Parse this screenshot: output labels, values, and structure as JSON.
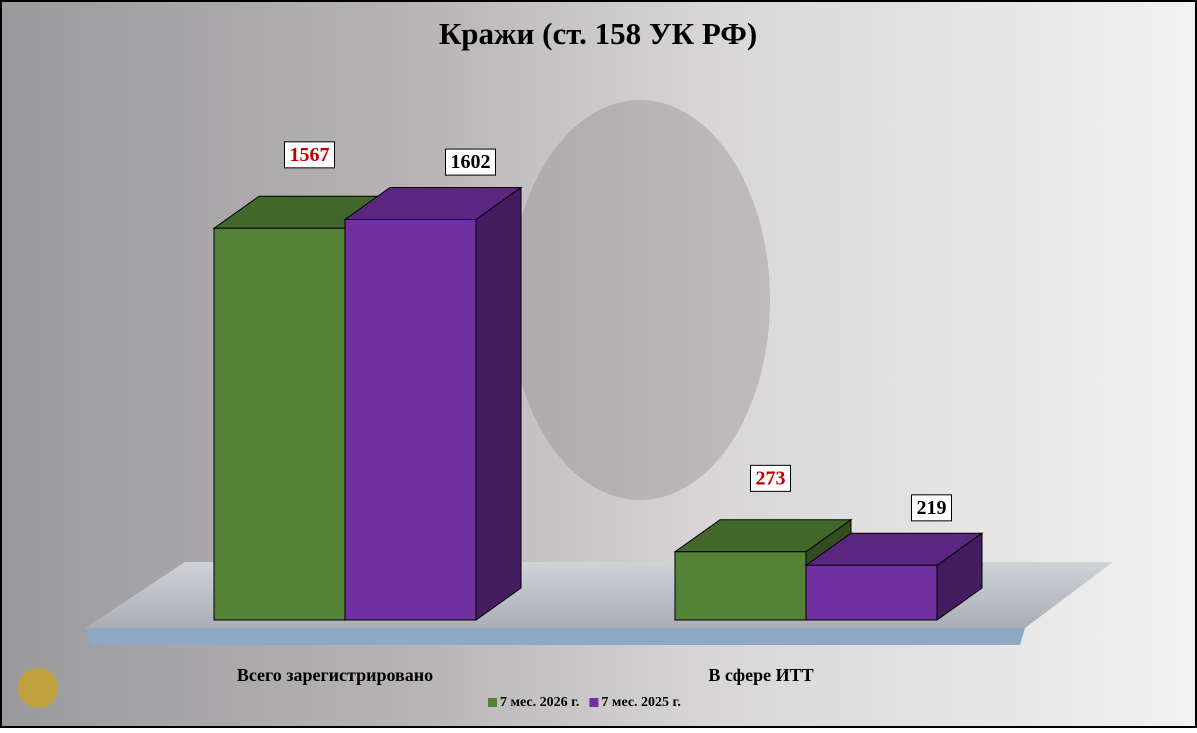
{
  "chart_data": {
    "type": "bar3d",
    "title": "Кражи (ст. 158 УК РФ)",
    "categories": [
      "Всего зарегистрировано",
      "В сфере ИТТ"
    ],
    "series": [
      {
        "name": "7 мес. 2026 г.",
        "color": "#538135",
        "label_color": "#c00000",
        "values": [
          1567,
          273
        ]
      },
      {
        "name": "7 мес. 2025 г.",
        "color": "#7030a0",
        "label_color": "#000000",
        "values": [
          1602,
          219
        ]
      }
    ]
  }
}
